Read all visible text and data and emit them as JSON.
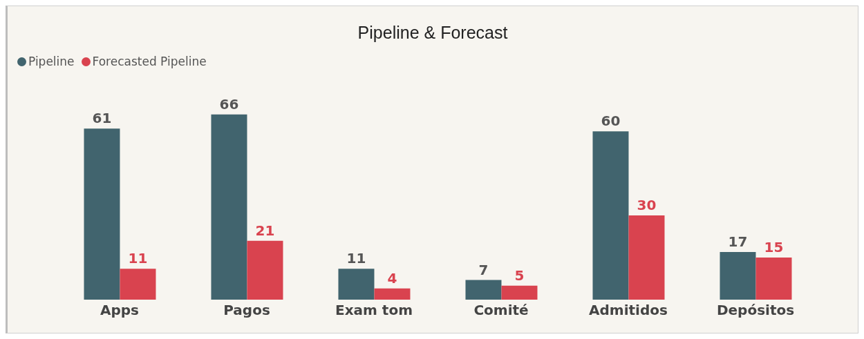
{
  "chart_data": {
    "type": "bar",
    "title": "Pipeline & Forecast",
    "categories": [
      "Apps",
      "Pagos",
      "Exam tom",
      "Comité",
      "Admitidos",
      "Depósitos"
    ],
    "series": [
      {
        "name": "Pipeline",
        "color": "#41646e",
        "values": [
          61,
          66,
          11,
          7,
          60,
          17
        ]
      },
      {
        "name": "Forecasted Pipeline",
        "color": "#d9434f",
        "values": [
          11,
          21,
          4,
          5,
          30,
          15
        ]
      }
    ],
    "data_labels": true,
    "legend": "top left",
    "grid": false
  }
}
